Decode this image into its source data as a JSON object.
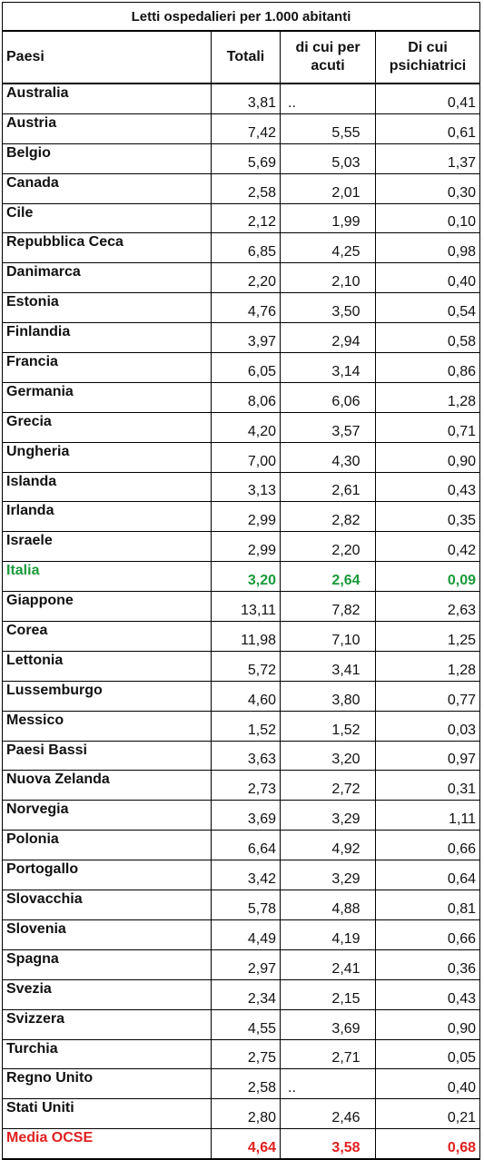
{
  "table": {
    "title": "Letti ospedalieri per 1.000 abitanti",
    "headers": [
      "Paesi",
      "Totali",
      "di cui per acuti",
      "Di cui psichiatrici"
    ],
    "rows": [
      {
        "country": "Australia",
        "totali": "3,81",
        "acuti": "..",
        "psichiatrici": "0,41"
      },
      {
        "country": "Austria",
        "totali": "7,42",
        "acuti": "5,55",
        "psichiatrici": "0,61"
      },
      {
        "country": "Belgio",
        "totali": "5,69",
        "acuti": "5,03",
        "psichiatrici": "1,37"
      },
      {
        "country": "Canada",
        "totali": "2,58",
        "acuti": "2,01",
        "psichiatrici": "0,30"
      },
      {
        "country": "Cile",
        "totali": "2,12",
        "acuti": "1,99",
        "psichiatrici": "0,10"
      },
      {
        "country": "Repubblica Ceca",
        "totali": "6,85",
        "acuti": "4,25",
        "psichiatrici": "0,98"
      },
      {
        "country": "Danimarca",
        "totali": "2,20",
        "acuti": "2,10",
        "psichiatrici": "0,40"
      },
      {
        "country": "Estonia",
        "totali": "4,76",
        "acuti": "3,50",
        "psichiatrici": "0,54"
      },
      {
        "country": "Finlandia",
        "totali": "3,97",
        "acuti": "2,94",
        "psichiatrici": "0,58"
      },
      {
        "country": "Francia",
        "totali": "6,05",
        "acuti": "3,14",
        "psichiatrici": "0,86"
      },
      {
        "country": "Germania",
        "totali": "8,06",
        "acuti": "6,06",
        "psichiatrici": "1,28"
      },
      {
        "country": "Grecia",
        "totali": "4,20",
        "acuti": "3,57",
        "psichiatrici": "0,71"
      },
      {
        "country": "Ungheria",
        "totali": "7,00",
        "acuti": "4,30",
        "psichiatrici": "0,90"
      },
      {
        "country": "Islanda",
        "totali": "3,13",
        "acuti": "2,61",
        "psichiatrici": "0,43"
      },
      {
        "country": "Irlanda",
        "totali": "2,99",
        "acuti": "2,82",
        "psichiatrici": "0,35"
      },
      {
        "country": "Israele",
        "totali": "2,99",
        "acuti": "2,20",
        "psichiatrici": "0,42"
      },
      {
        "country": "Italia",
        "totali": "3,20",
        "acuti": "2,64",
        "psichiatrici": "0,09",
        "style": "green"
      },
      {
        "country": "Giappone",
        "totali": "13,11",
        "acuti": "7,82",
        "psichiatrici": "2,63"
      },
      {
        "country": "Corea",
        "totali": "11,98",
        "acuti": "7,10",
        "psichiatrici": "1,25"
      },
      {
        "country": "Lettonia",
        "totali": "5,72",
        "acuti": "3,41",
        "psichiatrici": "1,28"
      },
      {
        "country": "Lussemburgo",
        "totali": "4,60",
        "acuti": "3,80",
        "psichiatrici": "0,77"
      },
      {
        "country": "Messico",
        "totali": "1,52",
        "acuti": "1,52",
        "psichiatrici": "0,03"
      },
      {
        "country": "Paesi Bassi",
        "totali": "3,63",
        "acuti": "3,20",
        "psichiatrici": "0,97"
      },
      {
        "country": "Nuova Zelanda",
        "totali": "2,73",
        "acuti": "2,72",
        "psichiatrici": "0,31"
      },
      {
        "country": "Norvegia",
        "totali": "3,69",
        "acuti": "3,29",
        "psichiatrici": "1,11"
      },
      {
        "country": "Polonia",
        "totali": "6,64",
        "acuti": "4,92",
        "psichiatrici": "0,66"
      },
      {
        "country": "Portogallo",
        "totali": "3,42",
        "acuti": "3,29",
        "psichiatrici": "0,64"
      },
      {
        "country": "Slovacchia",
        "totali": "5,78",
        "acuti": "4,88",
        "psichiatrici": "0,81"
      },
      {
        "country": "Slovenia",
        "totali": "4,49",
        "acuti": "4,19",
        "psichiatrici": "0,66"
      },
      {
        "country": "Spagna",
        "totali": "2,97",
        "acuti": "2,41",
        "psichiatrici": "0,36"
      },
      {
        "country": "Svezia",
        "totali": "2,34",
        "acuti": "2,15",
        "psichiatrici": "0,43"
      },
      {
        "country": "Svizzera",
        "totali": "4,55",
        "acuti": "3,69",
        "psichiatrici": "0,90"
      },
      {
        "country": "Turchia",
        "totali": "2,75",
        "acuti": "2,71",
        "psichiatrici": "0,05"
      },
      {
        "country": "Regno Unito",
        "totali": "2,58",
        "acuti": "..",
        "psichiatrici": "0,40"
      },
      {
        "country": "Stati Uniti",
        "totali": "2,80",
        "acuti": "2,46",
        "psichiatrici": "0,21"
      },
      {
        "country": "Media OCSE",
        "totali": "4,64",
        "acuti": "3,58",
        "psichiatrici": "0,68",
        "style": "red"
      }
    ]
  },
  "colors": {
    "highlight_green": "#1a9a3a",
    "highlight_red": "#e02020"
  }
}
